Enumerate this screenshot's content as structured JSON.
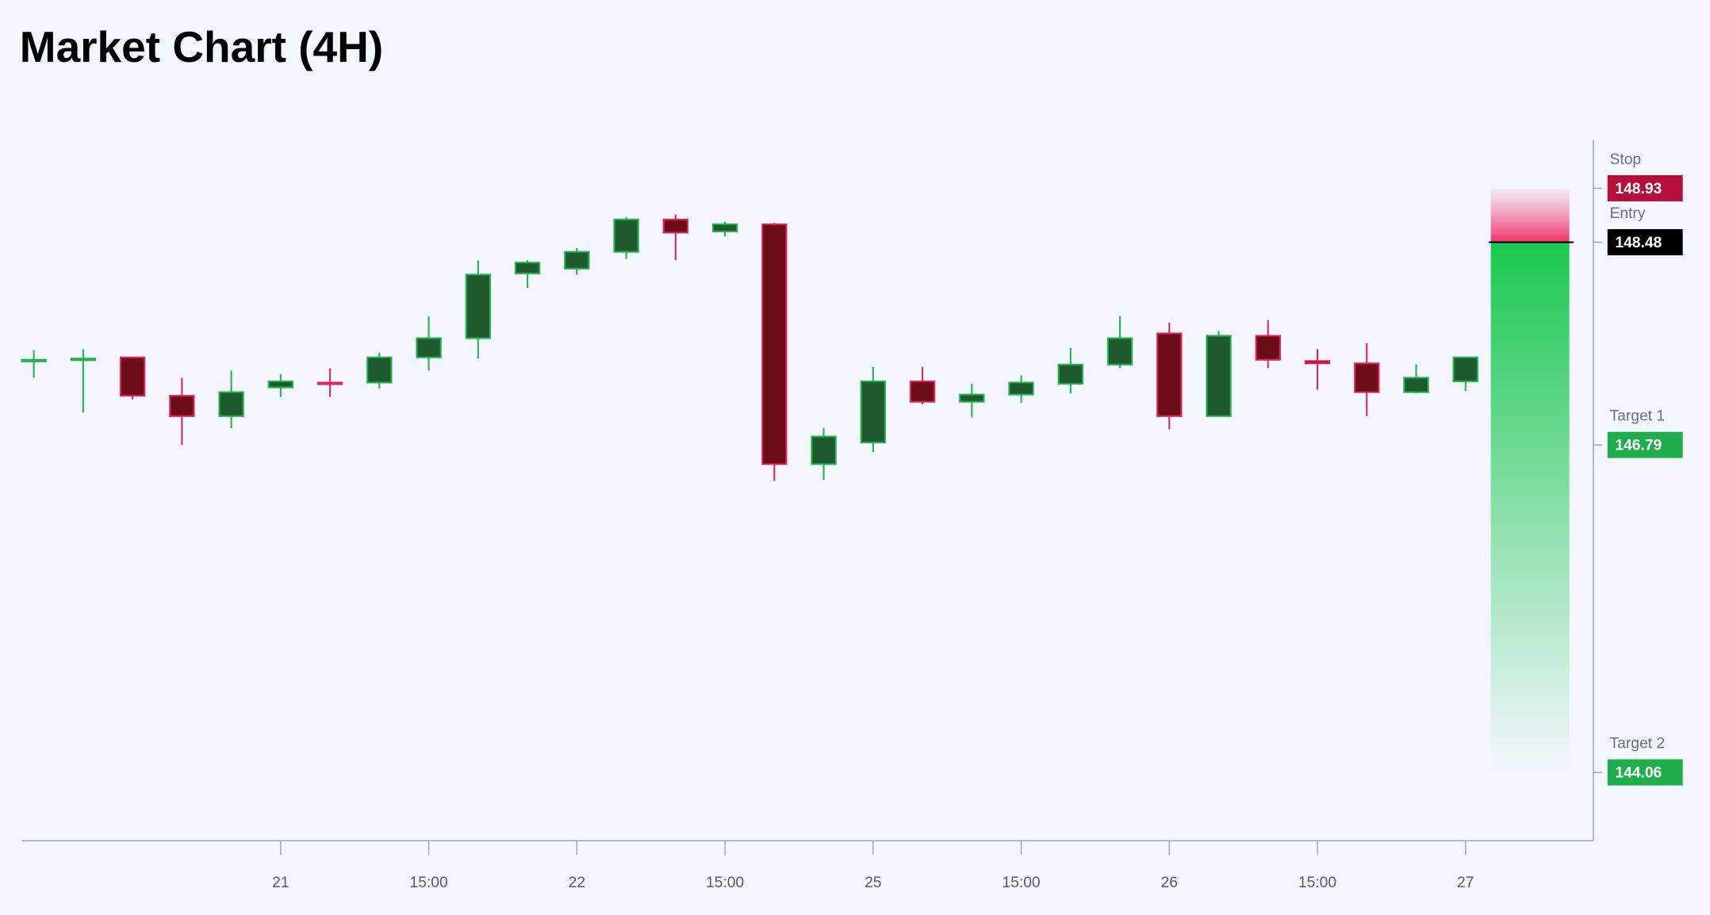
{
  "chart_data": {
    "type": "candlestick",
    "title": "Market Chart (4H)",
    "categories": [
      null,
      null,
      null,
      null,
      null,
      "21",
      null,
      null,
      "15:00",
      null,
      null,
      "22",
      null,
      null,
      "15:00",
      null,
      null,
      "25",
      null,
      null,
      "15:00",
      null,
      null,
      "26",
      null,
      null,
      "15:00",
      null,
      null,
      "27"
    ],
    "open": [
      147.5,
      147.5,
      147.52,
      147.2,
      147.03,
      147.27,
      147.31,
      147.31,
      147.52,
      147.68,
      148.22,
      148.26,
      148.4,
      148.67,
      148.57,
      148.63,
      146.63,
      146.81,
      147.32,
      147.15,
      147.21,
      147.3,
      147.46,
      147.72,
      147.03,
      147.7,
      147.49,
      147.47,
      147.23,
      147.32
    ],
    "high": [
      147.58,
      147.59,
      147.52,
      147.35,
      147.41,
      147.38,
      147.43,
      147.56,
      147.86,
      148.33,
      148.33,
      148.43,
      148.69,
      148.71,
      148.65,
      148.64,
      146.93,
      147.44,
      147.44,
      147.3,
      147.37,
      147.6,
      147.86,
      147.81,
      147.74,
      147.83,
      147.59,
      147.64,
      147.46,
      147.52
    ],
    "low": [
      147.35,
      147.06,
      147.17,
      146.79,
      146.93,
      147.19,
      147.19,
      147.26,
      147.41,
      147.51,
      148.1,
      148.21,
      148.34,
      148.33,
      148.53,
      146.49,
      146.5,
      146.73,
      147.13,
      147.02,
      147.14,
      147.22,
      147.43,
      146.92,
      147.03,
      147.43,
      147.25,
      147.03,
      147.22,
      147.24
    ],
    "close": [
      147.5,
      147.51,
      147.2,
      147.03,
      147.23,
      147.32,
      147.3,
      147.52,
      147.68,
      148.21,
      148.31,
      148.4,
      148.67,
      148.56,
      148.63,
      146.63,
      146.86,
      147.32,
      147.15,
      147.21,
      147.31,
      147.46,
      147.68,
      147.03,
      147.7,
      147.5,
      147.47,
      147.23,
      147.35,
      147.52
    ],
    "up_color": "#22b14c",
    "up_fill": "#1f5a2e",
    "down_color": "#e0245e",
    "down_fill": "#6b0d16",
    "ylim": [
      143.49,
      149.335
    ],
    "levels": [
      {
        "name": "Stop",
        "value": 148.93,
        "color": "#b5103c"
      },
      {
        "name": "Entry",
        "value": 148.48,
        "color": "#000000"
      },
      {
        "name": "Target 1",
        "value": 146.79,
        "color": "#1fae4b"
      },
      {
        "name": "Target 2",
        "value": 144.06,
        "color": "#1fae4b"
      }
    ]
  }
}
